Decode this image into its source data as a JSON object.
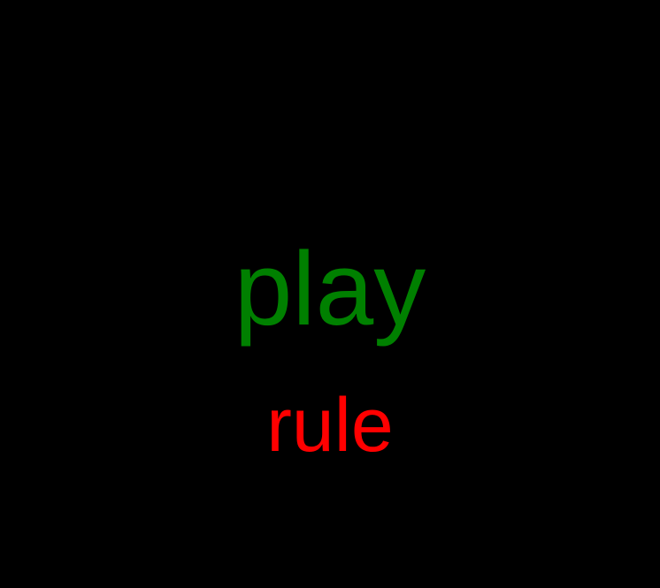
{
  "menu": {
    "play_label": "play",
    "rule_label": "rule",
    "play_color": "#008000",
    "rule_color": "#ff0000"
  },
  "background_color": "#000000"
}
